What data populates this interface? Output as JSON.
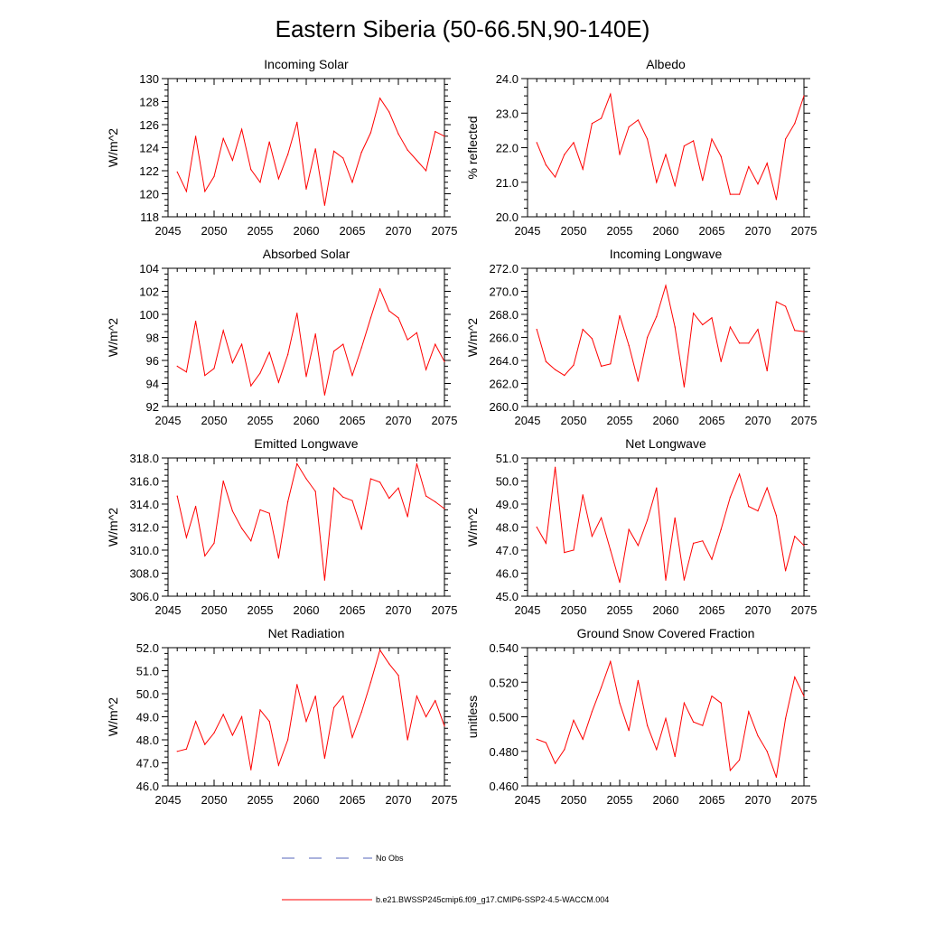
{
  "title": "Eastern Siberia (50-66.5N,90-140E)",
  "colors": {
    "series": "#ff0000",
    "obs": "#5566bb",
    "axis": "#000000"
  },
  "legend": {
    "obs_label": "No Obs",
    "model_label": "b.e21.BWSSP245cmip6.f09_g17.CMIP6-SSP2-4.5-WACCM.004"
  },
  "chart_data": [
    {
      "type": "line",
      "title": "Incoming Solar",
      "ylabel": "W/m^2",
      "xlim": [
        2045,
        2075
      ],
      "ylim": [
        118,
        130
      ],
      "xticks": [
        "2045",
        "2050",
        "2055",
        "2060",
        "2065",
        "2070",
        "2075"
      ],
      "yticks": [
        "118",
        "120",
        "122",
        "124",
        "126",
        "128",
        "130"
      ],
      "x": [
        2046,
        2047,
        2048,
        2049,
        2050,
        2051,
        2052,
        2053,
        2054,
        2055,
        2056,
        2057,
        2058,
        2059,
        2060,
        2061,
        2062,
        2063,
        2064,
        2065,
        2066,
        2067,
        2068,
        2069,
        2070,
        2071,
        2072,
        2073,
        2074,
        2075
      ],
      "values": [
        121.9,
        120.2,
        125.0,
        120.2,
        121.5,
        124.8,
        122.9,
        125.6,
        122.1,
        121.0,
        124.5,
        121.3,
        123.4,
        126.2,
        120.4,
        123.9,
        119.0,
        123.7,
        123.1,
        121.0,
        123.6,
        125.3,
        128.3,
        127.1,
        125.2,
        123.8,
        122.9,
        122.0,
        125.4,
        125.0
      ]
    },
    {
      "type": "line",
      "title": "Albedo",
      "ylabel": "% reflected",
      "xlim": [
        2045,
        2075
      ],
      "ylim": [
        20.0,
        24.0
      ],
      "xticks": [
        "2045",
        "2050",
        "2055",
        "2060",
        "2065",
        "2070",
        "2075"
      ],
      "yticks": [
        "20.0",
        "21.0",
        "22.0",
        "23.0",
        "24.0"
      ],
      "x": [
        2046,
        2047,
        2048,
        2049,
        2050,
        2051,
        2052,
        2053,
        2054,
        2055,
        2056,
        2057,
        2058,
        2059,
        2060,
        2061,
        2062,
        2063,
        2064,
        2065,
        2066,
        2067,
        2068,
        2069,
        2070,
        2071,
        2072,
        2073,
        2074,
        2075
      ],
      "values": [
        22.15,
        21.5,
        21.15,
        21.8,
        22.15,
        21.38,
        22.7,
        22.85,
        23.55,
        21.8,
        22.6,
        22.8,
        22.25,
        21.0,
        21.8,
        20.9,
        22.05,
        22.2,
        21.05,
        22.25,
        21.75,
        20.65,
        20.65,
        21.45,
        20.95,
        21.55,
        20.5,
        22.25,
        22.7,
        23.5
      ]
    },
    {
      "type": "line",
      "title": "Absorbed Solar",
      "ylabel": "W/m^2",
      "xlim": [
        2045,
        2075
      ],
      "ylim": [
        92,
        104
      ],
      "xticks": [
        "2045",
        "2050",
        "2055",
        "2060",
        "2065",
        "2070",
        "2075"
      ],
      "yticks": [
        "92",
        "94",
        "96",
        "98",
        "100",
        "102",
        "104"
      ],
      "x": [
        2046,
        2047,
        2048,
        2049,
        2050,
        2051,
        2052,
        2053,
        2054,
        2055,
        2056,
        2057,
        2058,
        2059,
        2060,
        2061,
        2062,
        2063,
        2064,
        2065,
        2066,
        2067,
        2068,
        2069,
        2070,
        2071,
        2072,
        2073,
        2074,
        2075
      ],
      "values": [
        95.5,
        95.0,
        99.4,
        94.7,
        95.3,
        98.6,
        95.8,
        97.4,
        93.8,
        94.9,
        96.7,
        94.1,
        96.5,
        100.1,
        94.6,
        98.3,
        93.0,
        96.8,
        97.4,
        94.7,
        97.1,
        99.7,
        102.2,
        100.3,
        99.7,
        97.8,
        98.4,
        95.2,
        97.4,
        95.9
      ]
    },
    {
      "type": "line",
      "title": "Incoming Longwave",
      "ylabel": "W/m^2",
      "xlim": [
        2045,
        2075
      ],
      "ylim": [
        260.0,
        272.0
      ],
      "xticks": [
        "2045",
        "2050",
        "2055",
        "2060",
        "2065",
        "2070",
        "2075"
      ],
      "yticks": [
        "260.0",
        "262.0",
        "264.0",
        "266.0",
        "268.0",
        "270.0",
        "272.0"
      ],
      "x": [
        2046,
        2047,
        2048,
        2049,
        2050,
        2051,
        2052,
        2053,
        2054,
        2055,
        2056,
        2057,
        2058,
        2059,
        2060,
        2061,
        2062,
        2063,
        2064,
        2065,
        2066,
        2067,
        2068,
        2069,
        2070,
        2071,
        2072,
        2073,
        2074,
        2075
      ],
      "values": [
        266.7,
        263.9,
        263.2,
        262.7,
        263.6,
        266.7,
        265.9,
        263.5,
        263.7,
        267.9,
        265.3,
        262.2,
        266.0,
        267.8,
        270.5,
        266.9,
        261.7,
        268.1,
        267.1,
        267.7,
        263.9,
        266.9,
        265.5,
        265.5,
        266.7,
        263.1,
        269.1,
        268.7,
        266.6,
        266.5
      ]
    },
    {
      "type": "line",
      "title": "Emitted Longwave",
      "ylabel": "W/m^2",
      "xlim": [
        2045,
        2075
      ],
      "ylim": [
        306.0,
        318.0
      ],
      "xticks": [
        "2045",
        "2050",
        "2055",
        "2060",
        "2065",
        "2070",
        "2075"
      ],
      "yticks": [
        "306.0",
        "308.0",
        "310.0",
        "312.0",
        "314.0",
        "316.0",
        "318.0"
      ],
      "x": [
        2046,
        2047,
        2048,
        2049,
        2050,
        2051,
        2052,
        2053,
        2054,
        2055,
        2056,
        2057,
        2058,
        2059,
        2060,
        2061,
        2062,
        2063,
        2064,
        2065,
        2066,
        2067,
        2068,
        2069,
        2070,
        2071,
        2072,
        2073,
        2074,
        2075
      ],
      "values": [
        314.7,
        311.1,
        313.8,
        309.5,
        310.6,
        316.0,
        313.4,
        311.9,
        310.8,
        313.5,
        313.2,
        309.3,
        314.2,
        317.5,
        316.2,
        315.1,
        307.4,
        315.4,
        314.6,
        314.3,
        311.8,
        316.2,
        315.9,
        314.5,
        315.4,
        312.9,
        317.5,
        314.7,
        314.2,
        313.6
      ]
    },
    {
      "type": "line",
      "title": "Net Longwave",
      "ylabel": "W/m^2",
      "xlim": [
        2045,
        2075
      ],
      "ylim": [
        45.0,
        51.0
      ],
      "xticks": [
        "2045",
        "2050",
        "2055",
        "2060",
        "2065",
        "2070",
        "2075"
      ],
      "yticks": [
        "45.0",
        "46.0",
        "47.0",
        "48.0",
        "49.0",
        "50.0",
        "51.0"
      ],
      "x": [
        2046,
        2047,
        2048,
        2049,
        2050,
        2051,
        2052,
        2053,
        2054,
        2055,
        2056,
        2057,
        2058,
        2059,
        2060,
        2061,
        2062,
        2063,
        2064,
        2065,
        2066,
        2067,
        2068,
        2069,
        2070,
        2071,
        2072,
        2073,
        2074,
        2075
      ],
      "values": [
        48.0,
        47.3,
        50.6,
        46.9,
        47.0,
        49.4,
        47.6,
        48.4,
        47.0,
        45.6,
        47.9,
        47.2,
        48.3,
        49.7,
        45.7,
        48.4,
        45.7,
        47.3,
        47.4,
        46.6,
        47.9,
        49.3,
        50.3,
        48.9,
        48.7,
        49.7,
        48.5,
        46.1,
        47.6,
        47.2
      ]
    },
    {
      "type": "line",
      "title": "Net Radiation",
      "ylabel": "W/m^2",
      "xlim": [
        2045,
        2075
      ],
      "ylim": [
        46.0,
        52.0
      ],
      "xticks": [
        "2045",
        "2050",
        "2055",
        "2060",
        "2065",
        "2070",
        "2075"
      ],
      "yticks": [
        "46.0",
        "47.0",
        "48.0",
        "49.0",
        "50.0",
        "51.0",
        "52.0"
      ],
      "x": [
        2046,
        2047,
        2048,
        2049,
        2050,
        2051,
        2052,
        2053,
        2054,
        2055,
        2056,
        2057,
        2058,
        2059,
        2060,
        2061,
        2062,
        2063,
        2064,
        2065,
        2066,
        2067,
        2068,
        2069,
        2070,
        2071,
        2072,
        2073,
        2074,
        2075
      ],
      "values": [
        47.5,
        47.6,
        48.8,
        47.8,
        48.3,
        49.1,
        48.2,
        49.0,
        46.7,
        49.3,
        48.8,
        46.9,
        48.0,
        50.4,
        48.8,
        49.9,
        47.2,
        49.4,
        49.9,
        48.1,
        49.2,
        50.5,
        51.9,
        51.3,
        50.8,
        48.0,
        49.9,
        49.0,
        49.7,
        48.6
      ]
    },
    {
      "type": "line",
      "title": "Ground Snow Covered Fraction",
      "ylabel": "unitless",
      "xlim": [
        2045,
        2075
      ],
      "ylim": [
        0.46,
        0.54
      ],
      "xticks": [
        "2045",
        "2050",
        "2055",
        "2060",
        "2065",
        "2070",
        "2075"
      ],
      "yticks": [
        "0.460",
        "0.480",
        "0.500",
        "0.520",
        "0.540"
      ],
      "x": [
        2046,
        2047,
        2048,
        2049,
        2050,
        2051,
        2052,
        2053,
        2054,
        2055,
        2056,
        2057,
        2058,
        2059,
        2060,
        2061,
        2062,
        2063,
        2064,
        2065,
        2066,
        2067,
        2068,
        2069,
        2070,
        2071,
        2072,
        2073,
        2074,
        2075
      ],
      "values": [
        0.487,
        0.485,
        0.473,
        0.481,
        0.498,
        0.487,
        0.503,
        0.517,
        0.532,
        0.508,
        0.492,
        0.521,
        0.495,
        0.481,
        0.499,
        0.477,
        0.508,
        0.497,
        0.495,
        0.512,
        0.508,
        0.469,
        0.475,
        0.503,
        0.489,
        0.48,
        0.465,
        0.499,
        0.523,
        0.512
      ]
    }
  ]
}
